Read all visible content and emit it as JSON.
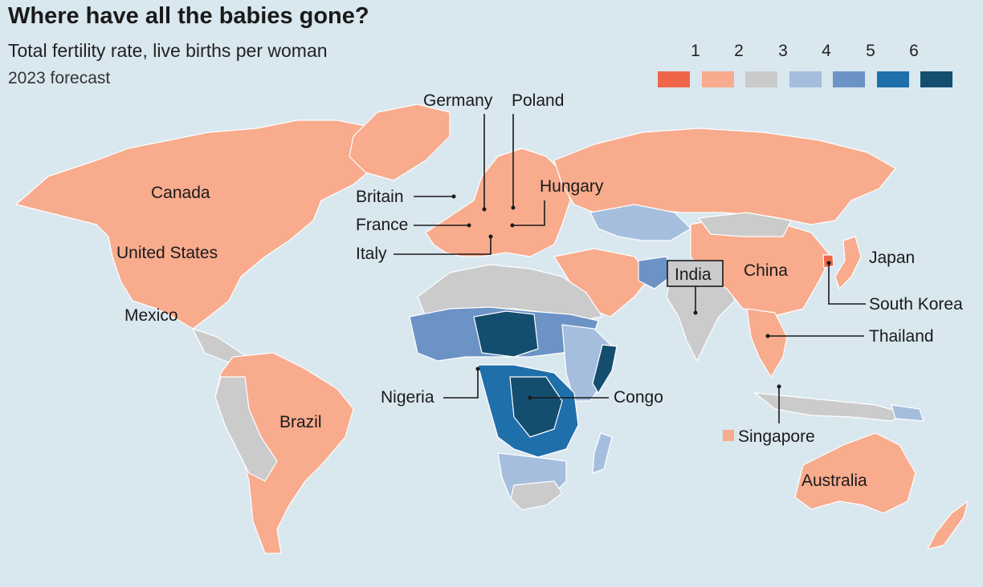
{
  "title": "Where have all the babies gone?",
  "subtitle": "Total fertility rate, live births per woman",
  "note": "2023 forecast",
  "legend": {
    "ticks": [
      "1",
      "2",
      "3",
      "4",
      "5",
      "6"
    ],
    "bins": [
      {
        "color": "#f0654a"
      },
      {
        "color": "#f8ab8d"
      },
      {
        "color": "#cbcbcb"
      },
      {
        "color": "#a5bedd"
      },
      {
        "color": "#6c93c6"
      },
      {
        "color": "#1f6fab"
      },
      {
        "color": "#144e6f"
      }
    ]
  },
  "labels": {
    "canada": "Canada",
    "united_states": "United States",
    "mexico": "Mexico",
    "brazil": "Brazil",
    "britain": "Britain",
    "france": "France",
    "italy": "Italy",
    "germany": "Germany",
    "poland": "Poland",
    "hungary": "Hungary",
    "nigeria": "Nigeria",
    "congo": "Congo",
    "india": "India",
    "china": "China",
    "japan": "Japan",
    "south_korea": "South Korea",
    "thailand": "Thailand",
    "singapore": "Singapore",
    "australia": "Australia"
  }
}
